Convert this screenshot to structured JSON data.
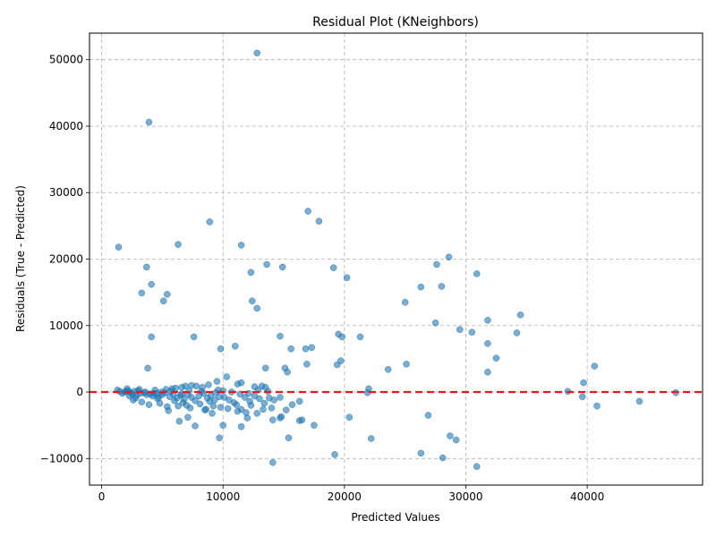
{
  "chart_data": {
    "type": "scatter",
    "title": "Residual Plot (KNeighbors)",
    "xlabel": "Predicted Values",
    "ylabel": "Residuals (True - Predicted)",
    "xlim": [
      -1000,
      49500
    ],
    "ylim": [
      -14000,
      54000
    ],
    "xticks": [
      0,
      10000,
      20000,
      30000,
      40000
    ],
    "yticks": [
      -10000,
      0,
      10000,
      20000,
      30000,
      40000,
      50000
    ],
    "grid": true,
    "reference_line": {
      "y": 0,
      "color": "#e41a1c",
      "style": "dashed"
    },
    "point_color": "#1f77b4",
    "points": [
      [
        12800,
        51000
      ],
      [
        3900,
        40600
      ],
      [
        17000,
        27200
      ],
      [
        17900,
        25700
      ],
      [
        8900,
        25600
      ],
      [
        1400,
        21800
      ],
      [
        6300,
        22200
      ],
      [
        11500,
        22100
      ],
      [
        28600,
        20300
      ],
      [
        27600,
        19200
      ],
      [
        13600,
        19200
      ],
      [
        3700,
        18800
      ],
      [
        14900,
        18800
      ],
      [
        19100,
        18700
      ],
      [
        12300,
        18000
      ],
      [
        30900,
        17800
      ],
      [
        20200,
        17200
      ],
      [
        4100,
        16200
      ],
      [
        26300,
        15800
      ],
      [
        28000,
        15900
      ],
      [
        3300,
        14900
      ],
      [
        5400,
        14700
      ],
      [
        5100,
        13700
      ],
      [
        12400,
        13700
      ],
      [
        25000,
        13500
      ],
      [
        12800,
        12600
      ],
      [
        34500,
        11600
      ],
      [
        31800,
        10800
      ],
      [
        27500,
        10400
      ],
      [
        29500,
        9400
      ],
      [
        30500,
        9000
      ],
      [
        34200,
        8900
      ],
      [
        19500,
        8700
      ],
      [
        19800,
        8300
      ],
      [
        21300,
        8300
      ],
      [
        14700,
        8400
      ],
      [
        4100,
        8300
      ],
      [
        7600,
        8300
      ],
      [
        31800,
        7300
      ],
      [
        11000,
        6900
      ],
      [
        9800,
        6500
      ],
      [
        15600,
        6500
      ],
      [
        16800,
        6500
      ],
      [
        17300,
        6700
      ],
      [
        32500,
        5100
      ],
      [
        19700,
        4700
      ],
      [
        16900,
        4200
      ],
      [
        19400,
        4100
      ],
      [
        25100,
        4200
      ],
      [
        40600,
        3900
      ],
      [
        23600,
        3400
      ],
      [
        3800,
        3600
      ],
      [
        13500,
        3600
      ],
      [
        15100,
        3600
      ],
      [
        15300,
        3000
      ],
      [
        31800,
        3000
      ],
      [
        10300,
        2300
      ],
      [
        9500,
        1600
      ],
      [
        39700,
        1400
      ],
      [
        11200,
        1200
      ],
      [
        11500,
        1400
      ],
      [
        12600,
        800
      ],
      [
        13200,
        900
      ],
      [
        13500,
        700
      ],
      [
        7400,
        1000
      ],
      [
        7800,
        900
      ],
      [
        8300,
        700
      ],
      [
        8800,
        1100
      ],
      [
        6600,
        700
      ],
      [
        6900,
        900
      ],
      [
        2100,
        500
      ],
      [
        3100,
        400
      ],
      [
        4400,
        300
      ],
      [
        5300,
        400
      ],
      [
        5800,
        500
      ],
      [
        6100,
        600
      ],
      [
        9600,
        300
      ],
      [
        10000,
        200
      ],
      [
        12900,
        300
      ],
      [
        22000,
        500
      ],
      [
        38400,
        100
      ],
      [
        47300,
        -100
      ],
      [
        1500,
        100
      ],
      [
        1700,
        -200
      ],
      [
        1900,
        0
      ],
      [
        2200,
        200
      ],
      [
        2500,
        -300
      ],
      [
        2700,
        100
      ],
      [
        2900,
        -500
      ],
      [
        3200,
        -200
      ],
      [
        3500,
        -100
      ],
      [
        3700,
        -400
      ],
      [
        4000,
        -300
      ],
      [
        4200,
        -600
      ],
      [
        4500,
        -200
      ],
      [
        4700,
        -800
      ],
      [
        5000,
        -400
      ],
      [
        5200,
        -100
      ],
      [
        5600,
        -700
      ],
      [
        5900,
        -300
      ],
      [
        6200,
        -900
      ],
      [
        6500,
        -500
      ],
      [
        6800,
        -1100
      ],
      [
        7100,
        -400
      ],
      [
        7400,
        -800
      ],
      [
        7700,
        -1300
      ],
      [
        8000,
        -600
      ],
      [
        8400,
        -200
      ],
      [
        8700,
        -900
      ],
      [
        9000,
        -500
      ],
      [
        9300,
        -1200
      ],
      [
        9700,
        -700
      ],
      [
        10100,
        -800
      ],
      [
        10500,
        -1200
      ],
      [
        10900,
        -1600
      ],
      [
        11400,
        -300
      ],
      [
        11800,
        -800
      ],
      [
        12200,
        -1400
      ],
      [
        12600,
        -600
      ],
      [
        13000,
        -1000
      ],
      [
        13400,
        -1700
      ],
      [
        13800,
        -900
      ],
      [
        14200,
        -1200
      ],
      [
        14700,
        -800
      ],
      [
        21900,
        -100
      ],
      [
        2600,
        -1200
      ],
      [
        3300,
        -1500
      ],
      [
        3900,
        -1900
      ],
      [
        4800,
        -1700
      ],
      [
        5400,
        -2200
      ],
      [
        6300,
        -2100
      ],
      [
        7000,
        -2000
      ],
      [
        7300,
        -2400
      ],
      [
        8100,
        -1800
      ],
      [
        8600,
        -2600
      ],
      [
        9200,
        -2100
      ],
      [
        9800,
        -2300
      ],
      [
        10400,
        -2500
      ],
      [
        11100,
        -1900
      ],
      [
        11500,
        -2600
      ],
      [
        11900,
        -3100
      ],
      [
        12300,
        -2000
      ],
      [
        12800,
        -3200
      ],
      [
        13300,
        -2600
      ],
      [
        14000,
        -2400
      ],
      [
        14700,
        -3900
      ],
      [
        15200,
        -2700
      ],
      [
        15700,
        -1900
      ],
      [
        16300,
        -1400
      ],
      [
        5500,
        -2800
      ],
      [
        6400,
        -4400
      ],
      [
        7100,
        -3800
      ],
      [
        7700,
        -5100
      ],
      [
        8500,
        -2700
      ],
      [
        9100,
        -3200
      ],
      [
        10000,
        -5000
      ],
      [
        11200,
        -2900
      ],
      [
        11500,
        -5200
      ],
      [
        12000,
        -3900
      ],
      [
        14100,
        -4200
      ],
      [
        14800,
        -3700
      ],
      [
        16300,
        -4300
      ],
      [
        16500,
        -4200
      ],
      [
        17500,
        -5000
      ],
      [
        20400,
        -3800
      ],
      [
        26900,
        -3500
      ],
      [
        39600,
        -700
      ],
      [
        40800,
        -2100
      ],
      [
        44300,
        -1400
      ],
      [
        9700,
        -6900
      ],
      [
        15400,
        -6900
      ],
      [
        22200,
        -7000
      ],
      [
        28700,
        -6600
      ],
      [
        29200,
        -7200
      ],
      [
        19200,
        -9400
      ],
      [
        26300,
        -9200
      ],
      [
        28100,
        -9900
      ],
      [
        14100,
        -10600
      ],
      [
        30900,
        -11200
      ],
      [
        2000,
        100
      ],
      [
        2400,
        -100
      ],
      [
        3000,
        200
      ],
      [
        3600,
        0
      ],
      [
        4300,
        -200
      ],
      [
        4900,
        0
      ],
      [
        5700,
        100
      ],
      [
        6600,
        -300
      ],
      [
        7200,
        200
      ],
      [
        8200,
        100
      ],
      [
        9400,
        -100
      ],
      [
        10700,
        0
      ],
      [
        12100,
        -200
      ],
      [
        13700,
        100
      ],
      [
        1300,
        300
      ],
      [
        2300,
        -600
      ],
      [
        2800,
        -900
      ],
      [
        4600,
        -1000
      ],
      [
        6000,
        -1300
      ],
      [
        6700,
        -1600
      ],
      [
        8900,
        -1400
      ]
    ]
  }
}
